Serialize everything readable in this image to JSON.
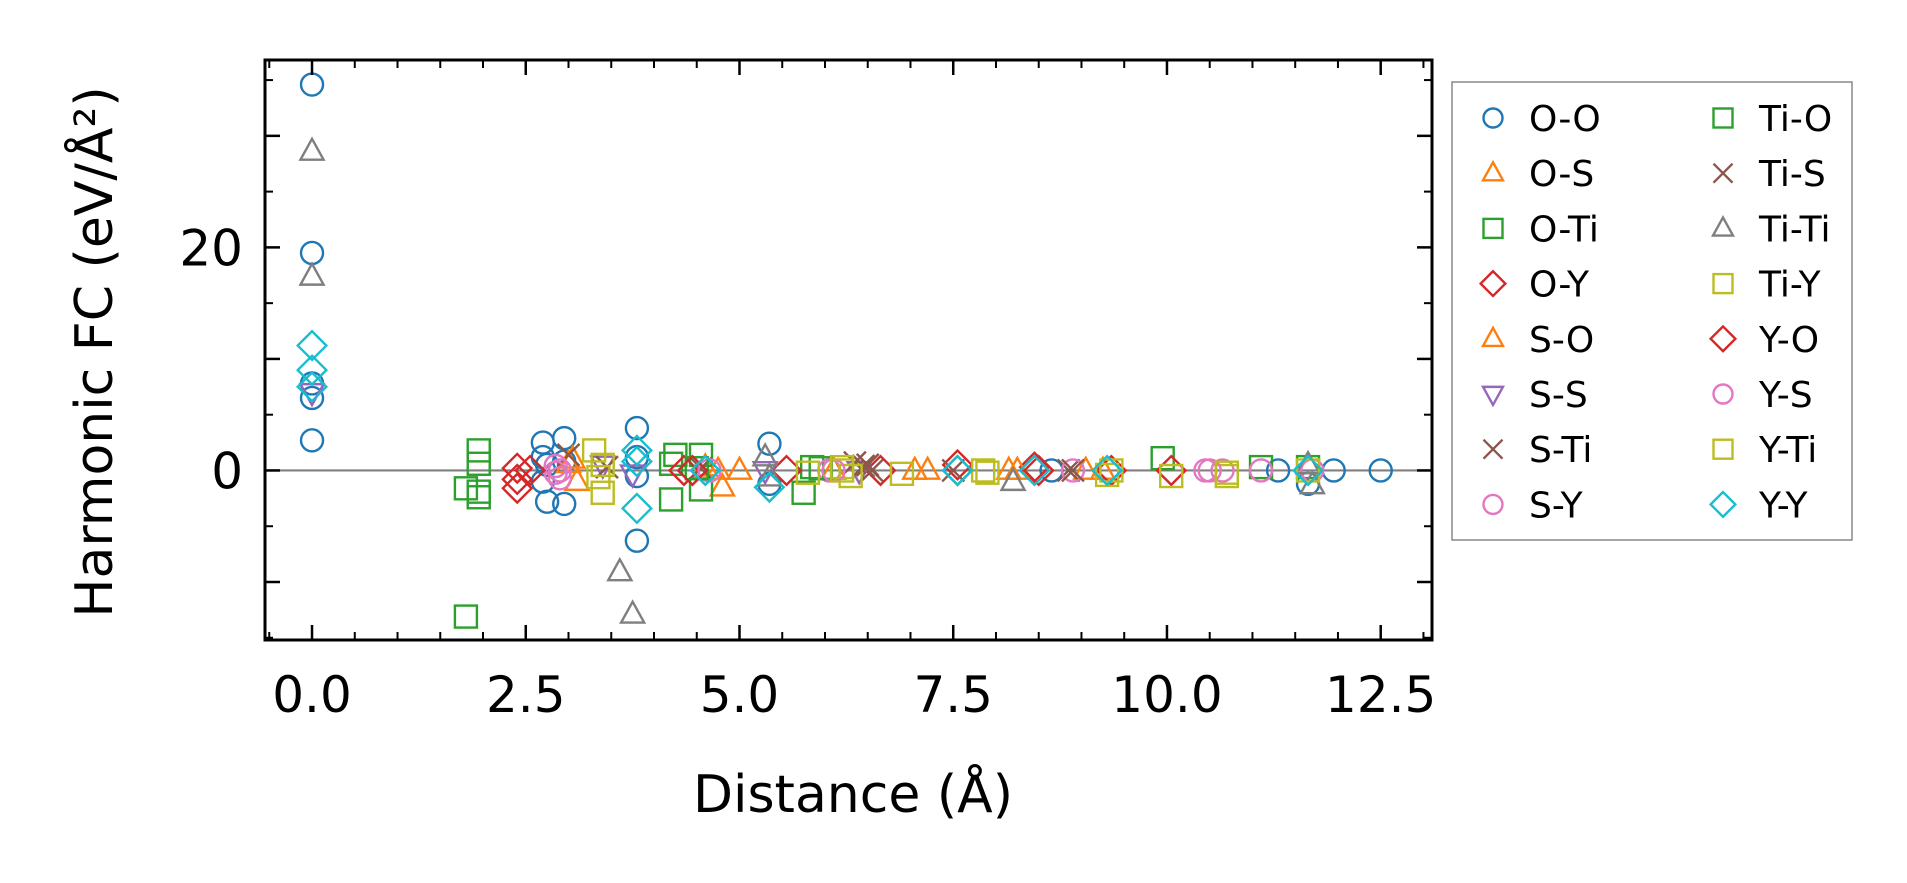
{
  "chart_data": {
    "type": "scatter",
    "title": "",
    "xlabel": "Distance (Å)",
    "ylabel": "Harmonic FC (eV/Å²)",
    "xlim": [
      -0.55,
      13.1
    ],
    "ylim": [
      -15.2,
      36.8
    ],
    "xticks": [
      0.0,
      2.5,
      5.0,
      7.5,
      10.0,
      12.5
    ],
    "xtick_labels": [
      "0.0",
      "2.5",
      "5.0",
      "7.5",
      "10.0",
      "12.5"
    ],
    "yticks": [
      0,
      20
    ],
    "ytick_labels": [
      "0",
      "20"
    ],
    "zero_line": true,
    "grid": false,
    "legend_position": "outside-right",
    "series": [
      {
        "name": "O-O",
        "marker": "circle",
        "color": "#1f77b4",
        "x": [
          0,
          0,
          0,
          0,
          0,
          2.7,
          2.7,
          2.7,
          2.75,
          2.75,
          2.95,
          2.95,
          2.95,
          3.8,
          3.8,
          3.8,
          3.8,
          5.35,
          5.35,
          8.65,
          11.3,
          11.65,
          11.95,
          12.5
        ],
        "y": [
          34.6,
          19.5,
          7.8,
          6.5,
          2.7,
          2.5,
          1.2,
          -1.0,
          -2.8,
          0.5,
          2.9,
          0.8,
          -3.0,
          3.8,
          1.2,
          -0.5,
          -6.3,
          2.4,
          -1.2,
          0,
          0,
          -1.2,
          0,
          0
        ]
      },
      {
        "name": "O-S",
        "marker": "triangle-up",
        "color": "#ff7f0e",
        "x": [
          3.05,
          3.1,
          4.6,
          4.8,
          5.0,
          6.1,
          7.05,
          8.15,
          9.05,
          9.25
        ],
        "y": [
          1.0,
          -1.0,
          0.3,
          -1.5,
          0,
          0,
          0,
          0,
          0,
          0
        ]
      },
      {
        "name": "O-Ti",
        "marker": "square",
        "color": "#2ca02c",
        "x": [
          1.8,
          1.8,
          1.95,
          1.95,
          1.95,
          1.95,
          4.2,
          4.2,
          4.25,
          4.55,
          4.55,
          5.75,
          5.85,
          9.95,
          11.1,
          11.65
        ],
        "y": [
          -13.1,
          -1.6,
          1.8,
          0.6,
          -1.9,
          -2.4,
          0.6,
          -2.6,
          1.4,
          1.4,
          -1.7,
          -2.0,
          0.3,
          1.1,
          0.3,
          0.3
        ]
      },
      {
        "name": "O-Y",
        "marker": "diamond",
        "color": "#d62728",
        "x": [
          2.4,
          2.4,
          2.4,
          4.35,
          5.55,
          6.65,
          7.55,
          8.45,
          9.35,
          10.05
        ],
        "y": [
          0.2,
          -0.8,
          -1.6,
          0,
          0,
          0,
          0.5,
          0.3,
          0,
          0
        ]
      },
      {
        "name": "S-O",
        "marker": "triangle-up",
        "color": "#ff7f0e",
        "x": [
          3.0,
          4.75,
          7.2,
          8.25
        ],
        "y": [
          0.6,
          0,
          0,
          0
        ]
      },
      {
        "name": "S-S",
        "marker": "triangle-down",
        "color": "#9467bd",
        "x": [
          0,
          3.4,
          3.75,
          5.3,
          6.4
        ],
        "y": [
          7.0,
          0.5,
          -0.3,
          0,
          0
        ]
      },
      {
        "name": "S-Ti",
        "marker": "x",
        "color": "#8c564b",
        "x": [
          3.0,
          3.45,
          4.55,
          6.35,
          6.45,
          6.55,
          8.85
        ],
        "y": [
          1.4,
          0.3,
          0.2,
          0.7,
          0.4,
          0,
          0
        ]
      },
      {
        "name": "S-Y",
        "marker": "circle",
        "color": "#e377c2",
        "x": [
          2.85,
          2.85,
          2.9,
          4.65,
          6.05,
          8.9,
          10.45,
          10.65,
          11.1,
          11.7
        ],
        "y": [
          0.4,
          -0.2,
          -0.7,
          0,
          0,
          0,
          0,
          0,
          0,
          0
        ]
      },
      {
        "name": "Ti-O",
        "marker": "square",
        "color": "#2ca02c",
        "x": [
          4.5,
          5.95
        ],
        "y": [
          0.2,
          0.2
        ]
      },
      {
        "name": "Ti-S",
        "marker": "x",
        "color": "#8c564b",
        "x": [
          6.5,
          7.5,
          8.9
        ],
        "y": [
          0.5,
          0,
          0
        ]
      },
      {
        "name": "Ti-Ti",
        "marker": "triangle-up",
        "color": "#7f7f7f",
        "x": [
          0,
          0,
          3.6,
          3.75,
          5.3,
          5.35,
          8.2,
          11.65,
          11.7
        ],
        "y": [
          28.6,
          17.4,
          -9.1,
          -12.9,
          1.2,
          -0.6,
          -1.0,
          0.5,
          -1.3
        ]
      },
      {
        "name": "Ti-Y",
        "marker": "square",
        "color": "#bcbd22",
        "x": [
          3.3,
          3.35,
          3.4,
          5.8,
          6.2,
          6.3,
          6.9,
          7.9,
          9.3,
          10.05,
          10.7
        ],
        "y": [
          1.8,
          -0.6,
          -2.0,
          -0.2,
          0.3,
          -0.5,
          -0.3,
          -0.2,
          -0.4,
          -0.5,
          -0.5
        ]
      },
      {
        "name": "Y-O",
        "marker": "diamond",
        "color": "#d62728",
        "x": [
          2.55,
          4.45,
          7.55,
          8.5
        ],
        "y": [
          0,
          0,
          0,
          0
        ]
      },
      {
        "name": "Y-S",
        "marker": "circle",
        "color": "#e377c2",
        "x": [
          2.9,
          6.1,
          10.5
        ],
        "y": [
          0,
          0,
          0
        ]
      },
      {
        "name": "Y-Ti",
        "marker": "square",
        "color": "#bcbd22",
        "x": [
          3.4,
          6.2,
          7.85,
          9.35,
          10.7,
          11.65
        ],
        "y": [
          0.5,
          0,
          0,
          0,
          -0.2,
          0
        ]
      },
      {
        "name": "Y-Y",
        "marker": "diamond",
        "color": "#17becf",
        "x": [
          0,
          0,
          0,
          3.8,
          3.8,
          3.8,
          4.6,
          5.35,
          7.55,
          8.45,
          9.3,
          11.65
        ],
        "y": [
          11.2,
          9.0,
          7.5,
          1.8,
          0.8,
          -3.4,
          0,
          -1.5,
          0,
          0,
          0,
          0
        ]
      }
    ]
  }
}
